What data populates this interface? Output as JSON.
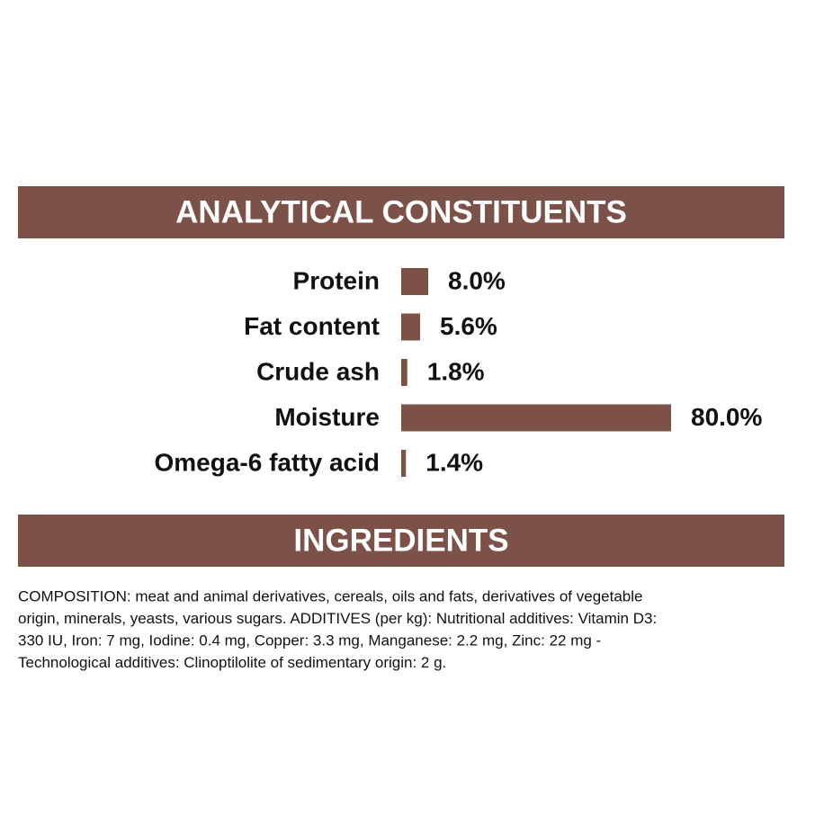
{
  "chart_data": {
    "type": "bar",
    "orientation": "horizontal",
    "title": "ANALYTICAL CONSTITUENTS",
    "categories": [
      "Protein",
      "Fat content",
      "Crude ash",
      "Moisture",
      "Omega-6 fatty acid"
    ],
    "values": [
      8.0,
      5.6,
      1.8,
      80.0,
      1.4
    ],
    "value_labels": [
      "8.0%",
      "5.6%",
      "1.8%",
      "80.0%",
      "1.4%"
    ],
    "color": "#7b5148"
  },
  "ingredients": {
    "title": "INGREDIENTS",
    "lines": [
      "COMPOSITION: meat and animal derivatives, cereals, oils and fats, derivatives of vegetable",
      "origin, minerals, yeasts, various sugars. ADDITIVES (per kg): Nutritional additives: Vitamin D3:",
      "330 IU, Iron: 7 mg, Iodine: 0.4 mg, Copper: 3.3 mg, Manganese: 2.2 mg, Zinc: 22 mg -",
      "Technological additives: Clinoptilolite of sedimentary origin: 2 g."
    ]
  }
}
